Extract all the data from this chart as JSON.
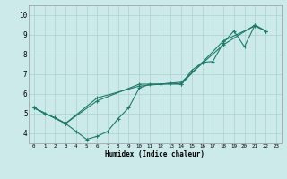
{
  "xlabel": "Humidex (Indice chaleur)",
  "xlim": [
    -0.5,
    23.5
  ],
  "ylim": [
    3.5,
    10.5
  ],
  "yticks": [
    4,
    5,
    6,
    7,
    8,
    9,
    10
  ],
  "xticks": [
    0,
    1,
    2,
    3,
    4,
    5,
    6,
    7,
    8,
    9,
    10,
    11,
    12,
    13,
    14,
    15,
    16,
    17,
    18,
    19,
    20,
    21,
    22,
    23
  ],
  "background_color": "#cceaea",
  "grid_color": "#aacfcf",
  "line_color": "#1e7a6a",
  "line1_x": [
    0,
    1,
    2,
    3,
    4,
    5,
    6,
    7,
    8,
    9,
    10,
    11,
    12,
    13,
    14,
    15,
    16,
    17,
    18,
    19,
    20,
    21,
    22
  ],
  "line1_y": [
    5.3,
    5.0,
    4.8,
    4.5,
    4.1,
    3.7,
    3.85,
    4.1,
    4.75,
    5.3,
    6.3,
    6.5,
    6.5,
    6.55,
    6.5,
    7.2,
    7.6,
    7.65,
    8.6,
    9.2,
    8.4,
    9.5,
    9.2
  ],
  "line2_x": [
    0,
    3,
    6,
    10,
    14,
    18,
    21,
    22
  ],
  "line2_y": [
    5.3,
    4.5,
    5.8,
    6.4,
    6.6,
    8.5,
    9.5,
    9.2
  ],
  "line3_x": [
    0,
    3,
    6,
    10,
    14,
    18,
    21,
    22
  ],
  "line3_y": [
    5.3,
    4.5,
    5.65,
    6.5,
    6.5,
    8.7,
    9.45,
    9.2
  ]
}
